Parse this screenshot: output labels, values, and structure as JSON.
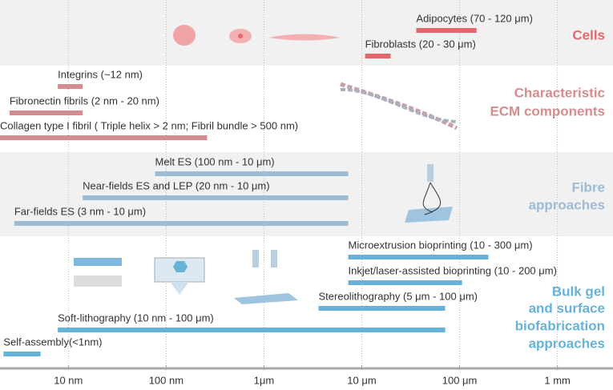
{
  "chart_data": {
    "type": "range",
    "xscale": "log",
    "xlim": [
      2,
      3700000
    ],
    "grid": true,
    "xticks": [
      {
        "value": 10,
        "label": "10 nm"
      },
      {
        "value": 100,
        "label": "100 nm"
      },
      {
        "value": 1000,
        "label": "1μm"
      },
      {
        "value": 10000,
        "label": "10 μm"
      },
      {
        "value": 100000,
        "label": "100 μm"
      },
      {
        "value": 1000000,
        "label": "1 mm"
      }
    ],
    "sections": [
      {
        "name": [
          "Cells"
        ],
        "color": "#e5676b",
        "bars": [
          {
            "label": "Adipocytes (70 - 120 μm)",
            "range": [
              36000,
              149000
            ]
          },
          {
            "label": "Fibroblasts (20 - 30 μm)",
            "range": [
              10800,
              19700
            ]
          }
        ]
      },
      {
        "name": [
          "Characteristic",
          "ECM components"
        ],
        "color": "#d58c8e",
        "bars": [
          {
            "label": "Integrins (~12 nm)",
            "range": [
              7.8,
              14
            ]
          },
          {
            "label": "Fibronectin fibrils (2 nm - 20 nm)",
            "range": [
              2.5,
              14
            ]
          },
          {
            "label": "Collagen type I fibril ( Triple helix > 2 nm; Fibril bundle > 500 nm)",
            "range": [
              2,
              262
            ]
          }
        ]
      },
      {
        "name": [
          "Fibre",
          "approaches"
        ],
        "color": "#9ebbd6",
        "bars": [
          {
            "label": "Melt ES (100 nm - 10 μm)",
            "range": [
              77,
              7260
            ]
          },
          {
            "label": "Near-fields ES and LEP (20 nm - 10 μm)",
            "range": [
              14,
              7260
            ]
          },
          {
            "label": "Far-fields ES (3 nm - 10 μm)",
            "range": [
              2.8,
              7260
            ]
          }
        ]
      },
      {
        "name": [
          "Bulk gel",
          "and surface",
          "biofabrication",
          "approaches"
        ],
        "color": "#66b2d8",
        "bars": [
          {
            "label": "Microextrusion bioprinting (10 - 300 μm)",
            "range": [
              7260,
              197000
            ]
          },
          {
            "label": "Inkjet/laser-assisted bioprinting (10 - 200 μm)",
            "range": [
              7260,
              106000
            ]
          },
          {
            "label": "Stereolithography (5 μm - 100 μm)",
            "range": [
              3610,
              71200
            ]
          },
          {
            "label": "Soft-lithography (10 nm - 100 μm)",
            "range": [
              7.8,
              71200
            ]
          },
          {
            "label": "Self-assembly(<1nm)",
            "range": [
              2.17,
              5.2
            ]
          }
        ]
      }
    ]
  }
}
